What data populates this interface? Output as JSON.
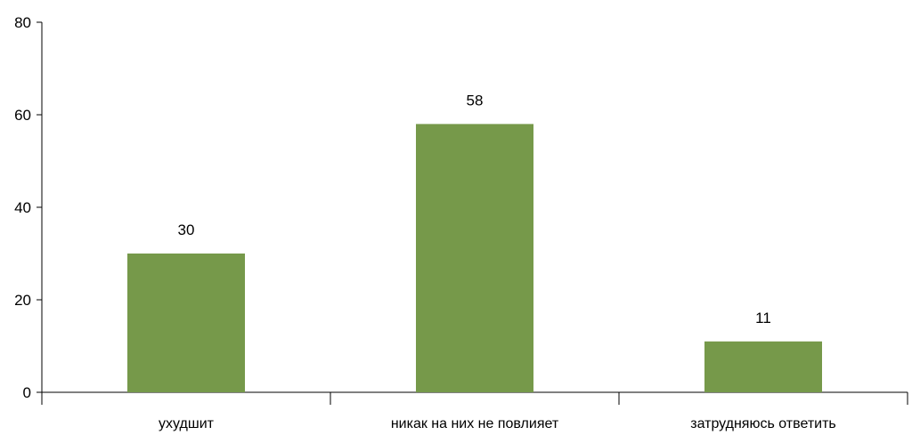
{
  "chart_data": {
    "type": "bar",
    "categories": [
      "ухудшит",
      "никак на них не повлияет",
      "затрудняюсь ответить"
    ],
    "values": [
      30,
      58,
      11
    ],
    "data_labels": [
      "30",
      "58",
      "11"
    ],
    "title": "",
    "xlabel": "",
    "ylabel": "",
    "ylim": [
      0,
      80
    ],
    "yticks": [
      0,
      20,
      40,
      60,
      80
    ],
    "ytick_labels": [
      "0",
      "20",
      "40",
      "60",
      "80"
    ],
    "grid": false,
    "legend": "none",
    "bar_color": "#76994a"
  }
}
